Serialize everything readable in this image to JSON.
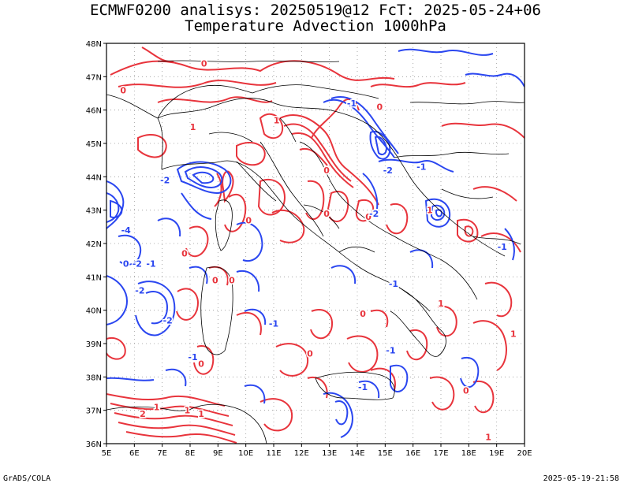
{
  "header": {
    "line1": "ECMWF0200 analisys: 20250519@12 FcT: 2025-05-24+06",
    "line2": "Temperature Advection 1000hPa"
  },
  "footer": {
    "credit": "GrADS/COLA",
    "timestamp": "2025-05-19-21:58"
  },
  "map": {
    "lon_range": [
      5,
      20
    ],
    "lat_range": [
      36,
      48
    ],
    "lon_labels": [
      "5E",
      "6E",
      "7E",
      "8E",
      "9E",
      "10E",
      "11E",
      "12E",
      "13E",
      "14E",
      "15E",
      "16E",
      "17E",
      "18E",
      "19E",
      "20E"
    ],
    "lat_labels": [
      "36N",
      "37N",
      "38N",
      "39N",
      "40N",
      "41N",
      "42N",
      "43N",
      "44N",
      "45N",
      "46N",
      "47N",
      "48N"
    ],
    "grid": "dotted",
    "colors": {
      "warm": "#e8343c",
      "cold": "#2a46f0",
      "border": "#000000"
    },
    "contour_labels": [
      {
        "text": "0",
        "lon": 5.6,
        "lat": 46.6,
        "c": "warm"
      },
      {
        "text": "0",
        "lon": 8.5,
        "lat": 47.4,
        "c": "warm"
      },
      {
        "text": "1",
        "lon": 8.1,
        "lat": 45.5,
        "c": "warm"
      },
      {
        "text": "-1",
        "lon": 13.8,
        "lat": 46.2,
        "c": "cold"
      },
      {
        "text": "1",
        "lon": 11.1,
        "lat": 45.7,
        "c": "warm"
      },
      {
        "text": "0",
        "lon": 14.8,
        "lat": 46.1,
        "c": "warm"
      },
      {
        "text": "-2",
        "lon": 15.1,
        "lat": 44.2,
        "c": "cold"
      },
      {
        "text": "-1",
        "lon": 16.3,
        "lat": 44.3,
        "c": "cold"
      },
      {
        "text": "0",
        "lon": 12.9,
        "lat": 44.2,
        "c": "warm"
      },
      {
        "text": "-2",
        "lon": 7.1,
        "lat": 43.9,
        "c": "cold"
      },
      {
        "text": "0",
        "lon": 10.1,
        "lat": 42.7,
        "c": "warm"
      },
      {
        "text": "0",
        "lon": 12.9,
        "lat": 42.9,
        "c": "warm"
      },
      {
        "text": "0",
        "lon": 14.4,
        "lat": 42.8,
        "c": "warm"
      },
      {
        "text": "-2",
        "lon": 14.6,
        "lat": 42.9,
        "c": "cold"
      },
      {
        "text": "1",
        "lon": 16.6,
        "lat": 43.0,
        "c": "warm"
      },
      {
        "text": "-4",
        "lon": 5.7,
        "lat": 42.4,
        "c": "cold"
      },
      {
        "text": "0",
        "lon": 5.7,
        "lat": 41.4,
        "c": "cold"
      },
      {
        "text": "-2",
        "lon": 6.1,
        "lat": 41.4,
        "c": "cold"
      },
      {
        "text": "-1",
        "lon": 6.6,
        "lat": 41.4,
        "c": "cold"
      },
      {
        "text": "-2",
        "lon": 6.2,
        "lat": 40.6,
        "c": "cold"
      },
      {
        "text": "-2",
        "lon": 7.2,
        "lat": 39.7,
        "c": "cold"
      },
      {
        "text": "-1",
        "lon": 8.1,
        "lat": 38.6,
        "c": "cold"
      },
      {
        "text": "0",
        "lon": 8.4,
        "lat": 38.4,
        "c": "warm"
      },
      {
        "text": "0",
        "lon": 7.8,
        "lat": 41.7,
        "c": "warm"
      },
      {
        "text": "0",
        "lon": 8.9,
        "lat": 40.9,
        "c": "warm"
      },
      {
        "text": "0",
        "lon": 9.5,
        "lat": 40.9,
        "c": "warm"
      },
      {
        "text": "-1",
        "lon": 11.0,
        "lat": 39.6,
        "c": "cold"
      },
      {
        "text": "0",
        "lon": 12.3,
        "lat": 38.7,
        "c": "warm"
      },
      {
        "text": "-1",
        "lon": 15.3,
        "lat": 40.8,
        "c": "cold"
      },
      {
        "text": "0",
        "lon": 14.2,
        "lat": 39.9,
        "c": "warm"
      },
      {
        "text": "-1",
        "lon": 15.2,
        "lat": 38.8,
        "c": "cold"
      },
      {
        "text": "1",
        "lon": 17.0,
        "lat": 40.2,
        "c": "warm"
      },
      {
        "text": "-1",
        "lon": 19.2,
        "lat": 41.9,
        "c": "cold"
      },
      {
        "text": "1",
        "lon": 19.6,
        "lat": 39.3,
        "c": "warm"
      },
      {
        "text": "-1",
        "lon": 14.2,
        "lat": 37.7,
        "c": "cold"
      },
      {
        "text": "1",
        "lon": 6.8,
        "lat": 37.1,
        "c": "warm"
      },
      {
        "text": "2",
        "lon": 6.3,
        "lat": 36.9,
        "c": "warm"
      },
      {
        "text": "1",
        "lon": 7.9,
        "lat": 37.0,
        "c": "warm"
      },
      {
        "text": "1",
        "lon": 8.4,
        "lat": 36.9,
        "c": "warm"
      },
      {
        "text": "0",
        "lon": 17.9,
        "lat": 37.6,
        "c": "warm"
      },
      {
        "text": "1",
        "lon": 18.7,
        "lat": 36.2,
        "c": "warm"
      }
    ]
  }
}
